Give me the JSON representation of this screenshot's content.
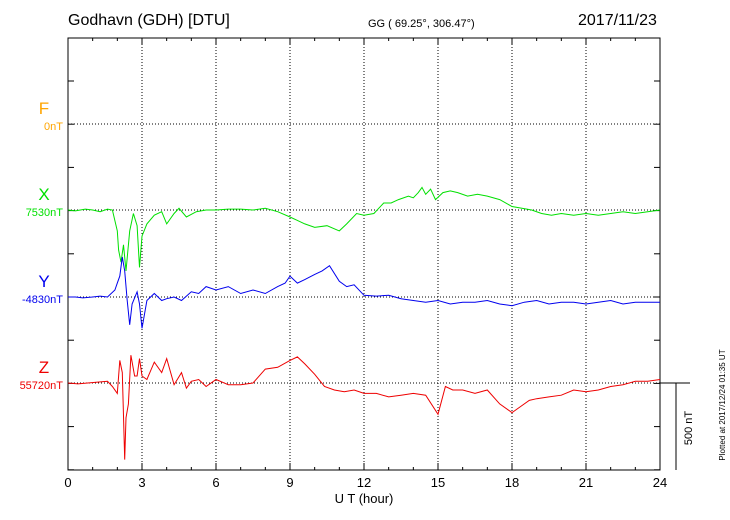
{
  "header": {
    "station": "Godhavn (GDH)  [DTU]",
    "coords": "GG ( 69.25°, 306.47°)",
    "date": "2017/11/23"
  },
  "footer": {
    "plotted": "Plotted at 2017/12/24 01:35 UT"
  },
  "colors": {
    "F": "#ffa500",
    "X": "#00e000",
    "Y": "#0000ee",
    "Z": "#ee0000"
  },
  "chart_data": {
    "type": "line",
    "xlabel": "U T (hour)",
    "xlim": [
      0,
      24
    ],
    "xticks": [
      "0",
      "3",
      "6",
      "9",
      "12",
      "15",
      "18",
      "21",
      "24"
    ],
    "scale_bar": "500 nT",
    "series": [
      {
        "name": "F",
        "baseline": "0nT",
        "x": [],
        "y": []
      },
      {
        "name": "X",
        "baseline": "7530nT",
        "x": [
          0,
          0.3,
          0.7,
          1.0,
          1.3,
          1.6,
          1.8,
          2.0,
          2.05,
          2.15,
          2.25,
          2.35,
          2.5,
          2.65,
          2.8,
          2.9,
          3.0,
          3.2,
          3.5,
          3.8,
          4.0,
          4.3,
          4.5,
          4.8,
          5.2,
          5.6,
          6.0,
          6.5,
          7.0,
          7.5,
          8.0,
          8.5,
          9.0,
          9.3,
          9.6,
          10.0,
          10.5,
          11.0,
          11.3,
          11.7,
          12.0,
          12.4,
          12.8,
          13.1,
          13.4,
          13.8,
          14.0,
          14.2,
          14.35,
          14.5,
          14.7,
          14.9,
          15.2,
          15.5,
          15.8,
          16.2,
          16.6,
          17.0,
          17.5,
          18.0,
          18.4,
          18.8,
          19.2,
          19.6,
          20.0,
          20.5,
          21.0,
          21.5,
          22.0,
          22.5,
          23.0,
          23.5,
          24.0
        ],
        "y": [
          0,
          -5,
          5,
          0,
          -10,
          5,
          0,
          -120,
          -230,
          -300,
          -200,
          -350,
          -120,
          -20,
          -90,
          -330,
          -150,
          -80,
          -30,
          -10,
          -80,
          -20,
          10,
          -40,
          -10,
          0,
          0,
          5,
          5,
          0,
          10,
          -10,
          -40,
          -60,
          -80,
          -100,
          -90,
          -120,
          -80,
          -20,
          -30,
          -20,
          40,
          40,
          60,
          80,
          70,
          100,
          130,
          90,
          120,
          60,
          100,
          110,
          100,
          80,
          90,
          80,
          60,
          20,
          10,
          0,
          -20,
          -30,
          -20,
          -30,
          -20,
          -30,
          -20,
          -10,
          -20,
          -10,
          0
        ]
      },
      {
        "name": "Y",
        "baseline": "-4830nT",
        "x": [
          0,
          0.3,
          0.6,
          1.0,
          1.3,
          1.6,
          1.9,
          2.0,
          2.1,
          2.2,
          2.3,
          2.4,
          2.5,
          2.6,
          2.8,
          2.9,
          3.0,
          3.2,
          3.5,
          3.8,
          4.0,
          4.3,
          4.6,
          5.0,
          5.3,
          5.6,
          6.0,
          6.5,
          7.0,
          7.5,
          8.0,
          8.5,
          8.8,
          9.0,
          9.3,
          9.6,
          10.0,
          10.3,
          10.6,
          11.0,
          11.3,
          11.6,
          12.0,
          12.5,
          13.0,
          13.5,
          14.0,
          14.5,
          15.0,
          15.5,
          16.0,
          16.5,
          17.0,
          17.5,
          18.0,
          18.5,
          19.0,
          19.5,
          20.0,
          20.5,
          21.0,
          21.5,
          22.0,
          22.5,
          23.0,
          23.5,
          24.0
        ],
        "y": [
          0,
          0,
          -5,
          0,
          5,
          0,
          40,
          80,
          120,
          230,
          150,
          -20,
          -160,
          -40,
          30,
          -40,
          -180,
          -20,
          20,
          -20,
          -10,
          0,
          -20,
          30,
          20,
          60,
          40,
          60,
          20,
          40,
          20,
          60,
          80,
          120,
          80,
          100,
          130,
          150,
          180,
          90,
          60,
          70,
          10,
          5,
          10,
          -10,
          -20,
          -30,
          -20,
          -40,
          -30,
          -30,
          -20,
          -40,
          -50,
          -30,
          -20,
          -40,
          -30,
          -30,
          -40,
          -30,
          -20,
          -40,
          -30,
          -30,
          -30
        ]
      },
      {
        "name": "Z",
        "baseline": "55720nT",
        "x": [
          0,
          0.4,
          0.8,
          1.2,
          1.6,
          1.8,
          2.0,
          2.1,
          2.2,
          2.3,
          2.35,
          2.45,
          2.55,
          2.7,
          2.8,
          2.9,
          3.0,
          3.2,
          3.5,
          3.8,
          4.0,
          4.3,
          4.6,
          4.8,
          5.0,
          5.3,
          5.6,
          6.0,
          6.5,
          7.0,
          7.5,
          8.0,
          8.5,
          9.0,
          9.3,
          9.6,
          10.0,
          10.4,
          10.8,
          11.2,
          11.6,
          12.0,
          12.5,
          13.0,
          13.5,
          14.0,
          14.5,
          15.0,
          15.3,
          15.6,
          16.0,
          16.5,
          17.0,
          17.5,
          18.0,
          18.3,
          18.7,
          19.0,
          19.5,
          20.0,
          20.5,
          21.0,
          21.5,
          22.0,
          22.5,
          23.0,
          23.5,
          24.0
        ],
        "y": [
          0,
          -5,
          0,
          5,
          10,
          -20,
          -60,
          130,
          60,
          -440,
          -200,
          -120,
          160,
          40,
          40,
          140,
          40,
          20,
          120,
          60,
          140,
          -10,
          60,
          -30,
          10,
          20,
          -20,
          20,
          -10,
          -10,
          0,
          80,
          90,
          130,
          150,
          110,
          50,
          -20,
          -40,
          -50,
          -40,
          -60,
          -60,
          -80,
          -70,
          -60,
          -70,
          -180,
          -20,
          -40,
          -40,
          -60,
          -40,
          -120,
          -170,
          -140,
          -100,
          -90,
          -80,
          -70,
          -40,
          -50,
          -40,
          -20,
          -10,
          10,
          10,
          20
        ]
      }
    ]
  }
}
